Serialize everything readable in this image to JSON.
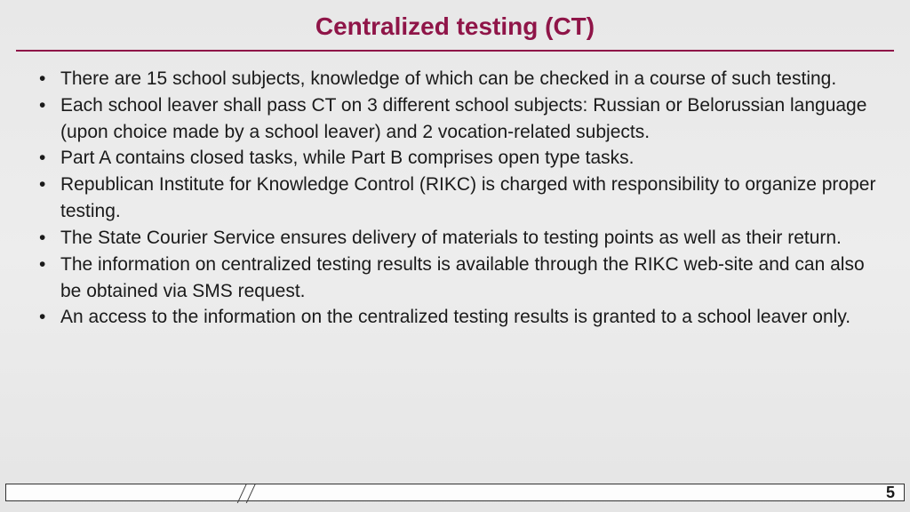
{
  "title": {
    "text": "Centralized testing (CT)",
    "color": "#8f1548",
    "fontsize": 28
  },
  "underline_color": "#8f1548",
  "background_gradient": {
    "top": "#e8e8e8",
    "mid": "#ededed",
    "bottom": "#e5e5e5"
  },
  "bullets": [
    "There are 15 school subjects, knowledge of which can be checked in a course of such testing.",
    "Each school leaver shall pass CT on 3 different school subjects: Russian or Belorussian language (upon choice made by a school leaver) and 2 vocation-related subjects.",
    "Part A contains closed tasks, while Part B comprises open type tasks.",
    "Republican Institute for Knowledge Control (RIKC) is charged with responsibility to organize proper testing.",
    "The State Courier Service ensures delivery of materials to testing points as well as their return.",
    "The information on centralized testing results is available through the RIKC web-site and can also be obtained via SMS request.",
    "An access to the information on the centralized testing results is granted to a school leaver only."
  ],
  "bullet_fontsize": 21,
  "bullet_text_color": "#1a1a1a",
  "footer": {
    "page_number": "5",
    "border_color": "#333333",
    "background": "#fdfdfd"
  }
}
